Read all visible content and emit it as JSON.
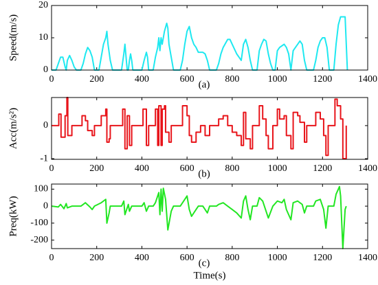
{
  "chart_data": [
    {
      "type": "line",
      "ylabel": "Speed(m/s)",
      "panel_label": "(a)",
      "color": "#1ee8f0",
      "xlim": [
        0,
        1400
      ],
      "xticks": [
        0,
        200,
        400,
        600,
        800,
        1000,
        1200,
        1400
      ],
      "ylim": [
        0,
        20
      ],
      "yticks": [
        0,
        10,
        20
      ],
      "x": [
        0,
        10,
        20,
        30,
        40,
        50,
        60,
        65,
        70,
        80,
        90,
        100,
        110,
        130,
        140,
        150,
        160,
        170,
        180,
        190,
        210,
        220,
        230,
        240,
        245,
        250,
        260,
        270,
        310,
        320,
        325,
        330,
        335,
        340,
        345,
        350,
        355,
        360,
        400,
        410,
        420,
        425,
        430,
        450,
        460,
        470,
        475,
        480,
        485,
        490,
        500,
        510,
        515,
        520,
        530,
        540,
        570,
        580,
        590,
        600,
        610,
        620,
        630,
        640,
        650,
        670,
        680,
        690,
        700,
        730,
        740,
        750,
        760,
        780,
        790,
        800,
        820,
        830,
        840,
        850,
        860,
        870,
        880,
        890,
        910,
        920,
        930,
        940,
        950,
        960,
        970,
        980,
        990,
        1000,
        1010,
        1020,
        1030,
        1040,
        1050,
        1060,
        1070,
        1080,
        1090,
        1100,
        1110,
        1120,
        1130,
        1160,
        1170,
        1180,
        1190,
        1200,
        1210,
        1220,
        1230,
        1250,
        1260,
        1270,
        1280,
        1300,
        1310
      ],
      "values": [
        0,
        0,
        0,
        2,
        4,
        4,
        1,
        0,
        3,
        4.5,
        3,
        1,
        0,
        0,
        2,
        5,
        7,
        6,
        4,
        0,
        0,
        4,
        8,
        10,
        12,
        8,
        3,
        0,
        0,
        5,
        8,
        4,
        0,
        0,
        3,
        5,
        3,
        0,
        0,
        3,
        5.5,
        4,
        0,
        0,
        4,
        7,
        10,
        6,
        10,
        8,
        12,
        14.5,
        13,
        8,
        4,
        0,
        0,
        3,
        8,
        12,
        13.5,
        10,
        8,
        7,
        5.5,
        5.5,
        5,
        3,
        0,
        0,
        2,
        5,
        7,
        9.5,
        9.5,
        8,
        5,
        4,
        3,
        8,
        9.5,
        7,
        3,
        0,
        0,
        6,
        8,
        9.5,
        9,
        5,
        2,
        0,
        0,
        6,
        7,
        7.5,
        8,
        7,
        5,
        0,
        6,
        7,
        8,
        9,
        8,
        3,
        0,
        0,
        3,
        7,
        9,
        10,
        10,
        7,
        0,
        0,
        8,
        14,
        16.5,
        16.5,
        0
      ]
    },
    {
      "type": "line",
      "ylabel": "Acc(m/s²)",
      "panel_label": "(b)",
      "color": "#e8141a",
      "step": true,
      "xlim": [
        0,
        1400
      ],
      "xticks": [
        0,
        200,
        400,
        600,
        800,
        1000,
        1200,
        1400
      ],
      "ylim": [
        -1.02,
        0.85
      ],
      "yticks": [
        -1,
        0
      ],
      "x": [
        0,
        30,
        32,
        40,
        42,
        55,
        60,
        65,
        68,
        72,
        85,
        90,
        130,
        135,
        150,
        160,
        180,
        190,
        220,
        240,
        245,
        255,
        260,
        310,
        315,
        325,
        335,
        345,
        355,
        400,
        405,
        420,
        430,
        450,
        460,
        470,
        475,
        485,
        490,
        500,
        505,
        520,
        530,
        570,
        580,
        600,
        610,
        620,
        640,
        660,
        680,
        700,
        730,
        740,
        760,
        780,
        800,
        820,
        840,
        850,
        860,
        880,
        890,
        910,
        920,
        935,
        950,
        960,
        980,
        1000,
        1010,
        1030,
        1040,
        1060,
        1070,
        1090,
        1100,
        1120,
        1130,
        1160,
        1170,
        1190,
        1205,
        1215,
        1225,
        1250,
        1255,
        1265,
        1280,
        1290,
        1300,
        1305
      ],
      "values": [
        0,
        0,
        0.35,
        0.35,
        -0.35,
        -0.35,
        0.3,
        0.3,
        0.85,
        -0.3,
        -0.3,
        0,
        0,
        0.3,
        0.15,
        -0.15,
        -0.3,
        0,
        0.3,
        0.5,
        -0.5,
        -0.4,
        0,
        0,
        0.5,
        -0.7,
        0.3,
        -0.6,
        0,
        0,
        0.5,
        -0.6,
        0,
        0,
        0.5,
        -0.6,
        0.6,
        -0.6,
        0.5,
        0.6,
        -0.2,
        -0.5,
        0,
        0,
        0.6,
        0.3,
        -0.3,
        -0.5,
        -0.2,
        0,
        -0.3,
        0,
        0,
        0.2,
        0.3,
        0,
        -0.2,
        -0.3,
        -0.6,
        0.4,
        -0.4,
        -0.7,
        0,
        0,
        0.6,
        0.2,
        -0.3,
        -0.7,
        0,
        0.5,
        0.2,
        0.3,
        -0.3,
        -0.7,
        0.4,
        0.3,
        0.1,
        -0.5,
        0,
        0,
        0.4,
        0.2,
        -0.3,
        -0.9,
        0,
        0,
        0.8,
        0.6,
        0.2,
        -1,
        -1,
        0
      ]
    },
    {
      "type": "line",
      "ylabel": "Preq(kW)",
      "panel_label": "(c)",
      "xlabel": "Time(s)",
      "color": "#22e622",
      "xlim": [
        0,
        1400
      ],
      "xticks": [
        0,
        200,
        400,
        600,
        800,
        1000,
        1200,
        1400
      ],
      "ylim": [
        -250,
        130
      ],
      "yticks": [
        -200,
        -100,
        0,
        100
      ],
      "x": [
        0,
        30,
        40,
        55,
        65,
        70,
        90,
        130,
        140,
        150,
        170,
        180,
        190,
        220,
        240,
        245,
        255,
        260,
        310,
        320,
        325,
        340,
        345,
        355,
        400,
        410,
        420,
        430,
        450,
        460,
        475,
        480,
        485,
        490,
        495,
        505,
        515,
        530,
        540,
        570,
        590,
        600,
        610,
        620,
        640,
        650,
        670,
        680,
        690,
        700,
        730,
        740,
        760,
        780,
        800,
        820,
        840,
        850,
        860,
        870,
        880,
        890,
        910,
        920,
        935,
        950,
        960,
        980,
        1000,
        1020,
        1030,
        1040,
        1060,
        1070,
        1090,
        1110,
        1120,
        1130,
        1160,
        1170,
        1190,
        1205,
        1215,
        1225,
        1250,
        1260,
        1270,
        1275,
        1280,
        1290,
        1300,
        1305
      ],
      "values": [
        0,
        -5,
        10,
        -15,
        15,
        -10,
        0,
        0,
        10,
        20,
        -5,
        -20,
        0,
        20,
        40,
        -100,
        -40,
        0,
        0,
        30,
        -50,
        10,
        -30,
        0,
        0,
        20,
        -30,
        0,
        0,
        20,
        80,
        -50,
        100,
        -30,
        105,
        40,
        -140,
        -30,
        0,
        0,
        40,
        60,
        -20,
        -60,
        -20,
        0,
        0,
        -20,
        -40,
        0,
        0,
        10,
        20,
        0,
        -20,
        -40,
        -70,
        30,
        60,
        -20,
        -80,
        0,
        0,
        50,
        30,
        -30,
        -70,
        0,
        30,
        20,
        40,
        -20,
        -80,
        20,
        30,
        10,
        -40,
        0,
        0,
        30,
        40,
        -20,
        -130,
        0,
        0,
        70,
        100,
        115,
        60,
        -250,
        -20,
        0
      ]
    }
  ]
}
